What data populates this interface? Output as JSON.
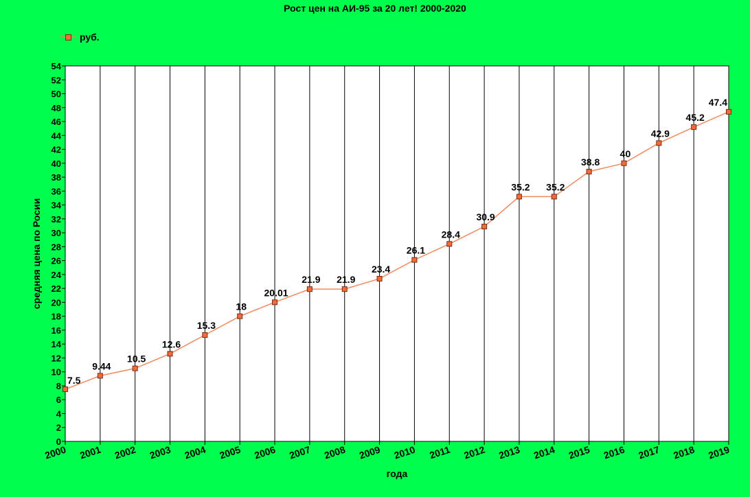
{
  "chart_data": {
    "type": "line",
    "title": "Рост цен на АИ-95 за 20 лет! 2000-2020",
    "xlabel": "года",
    "ylabel": "средняя цена по Росии",
    "categories": [
      "2000",
      "2001",
      "2002",
      "2003",
      "2004",
      "2005",
      "2006",
      "2007",
      "2008",
      "2009",
      "2010",
      "2011",
      "2012",
      "2013",
      "2014",
      "2015",
      "2016",
      "2017",
      "2018",
      "2019"
    ],
    "series": [
      {
        "name": "руб.",
        "values": [
          7.5,
          9.44,
          10.5,
          12.6,
          15.3,
          18,
          20.01,
          21.9,
          21.9,
          23.4,
          26.1,
          28.4,
          30.9,
          35.2,
          35.2,
          38.8,
          40,
          42.9,
          45.2,
          47.4
        ],
        "labels": [
          "7.5",
          "9.44",
          "10.5",
          "12.6",
          "15.3",
          "18",
          "20.01",
          "21.9",
          "21.9",
          "23.4",
          "26.1",
          "28.4",
          "30.9",
          "35.2",
          "35.2",
          "38.8",
          "40",
          "42.9",
          "45.2",
          "47.4"
        ]
      }
    ],
    "ylim": [
      0,
      54
    ],
    "yticks": [
      0,
      2,
      4,
      6,
      8,
      10,
      12,
      14,
      16,
      18,
      20,
      22,
      24,
      26,
      28,
      30,
      32,
      34,
      36,
      38,
      40,
      42,
      44,
      46,
      48,
      50,
      52,
      54
    ],
    "grid": "vertical",
    "legend": "top-left",
    "colors": {
      "background": "#00ff4c",
      "plot_area": "#ffffff",
      "line": "#f08a5d",
      "marker_fill": "#f26b3a",
      "marker_stroke": "#7a2a10"
    }
  }
}
